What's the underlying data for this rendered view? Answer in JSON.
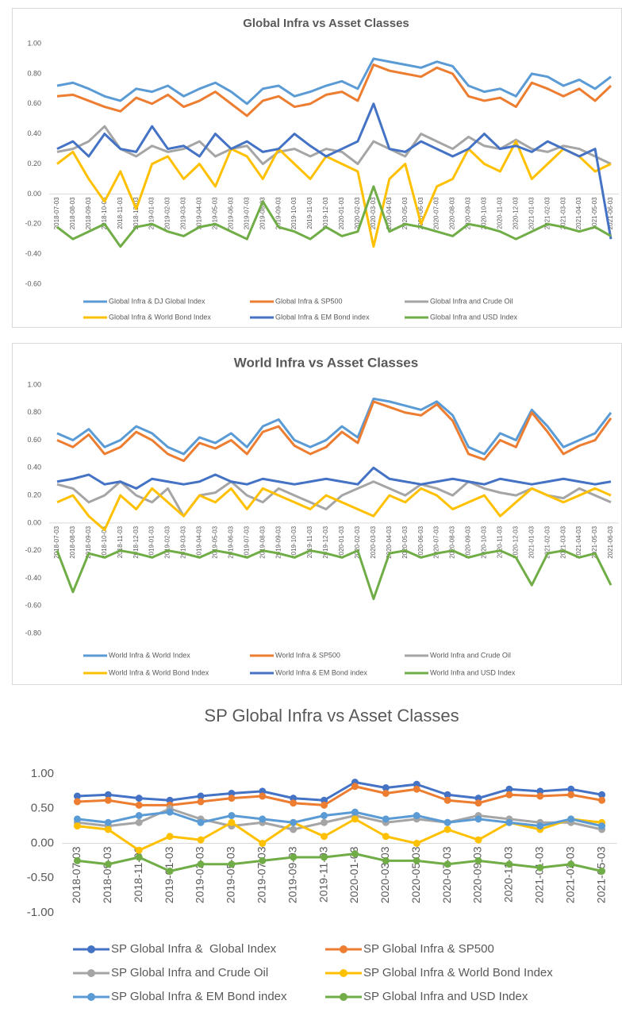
{
  "chart_data": [
    {
      "type": "line",
      "title": "Global Infra vs Asset Classes",
      "legend": "bottom",
      "grid": false,
      "categories": [
        "2018-07-03",
        "2018-08-03",
        "2018-09-03",
        "2018-10-03",
        "2018-11-03",
        "2018-12-03",
        "2019-01-03",
        "2019-02-03",
        "2019-03-03",
        "2019-04-03",
        "2019-05-03",
        "2019-06-03",
        "2019-07-03",
        "2019-08-03",
        "2019-09-03",
        "2019-10-03",
        "2019-11-03",
        "2019-12-03",
        "2020-01-03",
        "2020-02-03",
        "2020-03-03",
        "2020-04-03",
        "2020-05-03",
        "2020-06-03",
        "2020-07-03",
        "2020-08-03",
        "2020-09-03",
        "2020-10-03",
        "2020-11-03",
        "2020-12-03",
        "2021-01-03",
        "2021-02-03",
        "2021-03-03",
        "2021-04-03",
        "2021-05-03",
        "2021-06-03"
      ],
      "ylim": [
        -0.6,
        1.0
      ],
      "yticks": [
        {
          "value": 1.0,
          "label": "1.00"
        },
        {
          "value": 0.8,
          "label": "0.80"
        },
        {
          "value": 0.6,
          "label": "0.60"
        },
        {
          "value": 0.4,
          "label": "0.40"
        },
        {
          "value": 0.2,
          "label": "0.20"
        },
        {
          "value": 0,
          "label": "0.00"
        },
        {
          "value": -0.2,
          "label": "-0.20"
        },
        {
          "value": -0.4,
          "label": "-0.40"
        },
        {
          "value": -0.6,
          "label": "-0.60"
        }
      ],
      "series": [
        {
          "name": "Global Infra & DJ Global Index",
          "color": "#5b9bd5",
          "values": [
            0.72,
            0.74,
            0.7,
            0.65,
            0.62,
            0.7,
            0.68,
            0.72,
            0.65,
            0.7,
            0.74,
            0.68,
            0.6,
            0.7,
            0.72,
            0.65,
            0.68,
            0.72,
            0.75,
            0.7,
            0.9,
            0.88,
            0.86,
            0.84,
            0.88,
            0.85,
            0.72,
            0.68,
            0.7,
            0.65,
            0.8,
            0.78,
            0.72,
            0.76,
            0.7,
            0.78
          ]
        },
        {
          "name": "Global Infra & SP500",
          "color": "#ed7d31",
          "values": [
            0.65,
            0.66,
            0.62,
            0.58,
            0.55,
            0.64,
            0.6,
            0.66,
            0.58,
            0.62,
            0.68,
            0.6,
            0.52,
            0.62,
            0.65,
            0.58,
            0.6,
            0.66,
            0.68,
            0.62,
            0.86,
            0.82,
            0.8,
            0.78,
            0.84,
            0.8,
            0.65,
            0.62,
            0.64,
            0.58,
            0.74,
            0.7,
            0.65,
            0.7,
            0.62,
            0.72
          ]
        },
        {
          "name": "Global Infra and Crude Oil",
          "color": "#a5a5a5",
          "values": [
            0.28,
            0.3,
            0.35,
            0.45,
            0.3,
            0.25,
            0.32,
            0.28,
            0.3,
            0.35,
            0.25,
            0.3,
            0.32,
            0.2,
            0.28,
            0.3,
            0.25,
            0.3,
            0.28,
            0.2,
            0.35,
            0.3,
            0.25,
            0.4,
            0.35,
            0.3,
            0.38,
            0.32,
            0.3,
            0.36,
            0.3,
            0.28,
            0.32,
            0.3,
            0.25,
            0.2
          ]
        },
        {
          "name": "Global Infra & World Bond Index",
          "color": "#ffc000",
          "values": [
            0.2,
            0.28,
            0.1,
            -0.05,
            0.15,
            -0.1,
            0.2,
            0.25,
            0.1,
            0.2,
            0.05,
            0.3,
            0.25,
            0.1,
            0.3,
            0.2,
            0.1,
            0.25,
            0.2,
            0.15,
            -0.35,
            0.1,
            0.2,
            -0.2,
            0.05,
            0.1,
            0.3,
            0.2,
            0.15,
            0.35,
            0.1,
            0.2,
            0.3,
            0.25,
            0.15,
            0.2
          ]
        },
        {
          "name": "Global Infra & EM Bond index",
          "color": "#4472c4",
          "values": [
            0.3,
            0.35,
            0.25,
            0.4,
            0.3,
            0.28,
            0.45,
            0.3,
            0.32,
            0.25,
            0.4,
            0.3,
            0.35,
            0.28,
            0.3,
            0.4,
            0.32,
            0.25,
            0.3,
            0.35,
            0.6,
            0.3,
            0.28,
            0.35,
            0.3,
            0.25,
            0.3,
            0.4,
            0.3,
            0.32,
            0.28,
            0.35,
            0.3,
            0.25,
            0.3,
            -0.3
          ]
        },
        {
          "name": "Global Infra and USD Index",
          "color": "#70ad47",
          "values": [
            -0.22,
            -0.3,
            -0.25,
            -0.2,
            -0.35,
            -0.22,
            -0.2,
            -0.25,
            -0.28,
            -0.22,
            -0.2,
            -0.25,
            -0.3,
            -0.05,
            -0.22,
            -0.25,
            -0.3,
            -0.22,
            -0.28,
            -0.25,
            0.05,
            -0.25,
            -0.2,
            -0.22,
            -0.25,
            -0.28,
            -0.2,
            -0.22,
            -0.25,
            -0.3,
            -0.25,
            -0.2,
            -0.22,
            -0.25,
            -0.22,
            -0.28
          ]
        }
      ]
    },
    {
      "type": "line",
      "title": "World Infra vs Asset Classes",
      "legend": "bottom",
      "grid": false,
      "categories": [
        "2018-07-03",
        "2018-08-03",
        "2018-09-03",
        "2018-10-03",
        "2018-11-03",
        "2018-12-03",
        "2019-01-03",
        "2019-02-03",
        "2019-03-03",
        "2019-04-03",
        "2019-05-03",
        "2019-06-03",
        "2019-07-03",
        "2019-08-03",
        "2019-09-03",
        "2019-10-03",
        "2019-11-03",
        "2019-12-03",
        "2020-01-03",
        "2020-02-03",
        "2020-03-03",
        "2020-04-03",
        "2020-05-03",
        "2020-06-03",
        "2020-07-03",
        "2020-08-03",
        "2020-09-03",
        "2020-10-03",
        "2020-11-03",
        "2020-12-03",
        "2021-01-03",
        "2021-02-03",
        "2021-03-03",
        "2021-04-03",
        "2021-05-03",
        "2021-06-03"
      ],
      "ylim": [
        -0.8,
        1.0
      ],
      "yticks": [
        {
          "value": 1.0,
          "label": "1.00"
        },
        {
          "value": 0.8,
          "label": "0.80"
        },
        {
          "value": 0.6,
          "label": "0.60"
        },
        {
          "value": 0.4,
          "label": "0.40"
        },
        {
          "value": 0.2,
          "label": "0.20"
        },
        {
          "value": 0,
          "label": "0.00"
        },
        {
          "value": -0.2,
          "label": "-0.20"
        },
        {
          "value": -0.4,
          "label": "-0.40"
        },
        {
          "value": -0.6,
          "label": "-0.60"
        },
        {
          "value": -0.8,
          "label": "-0.80"
        }
      ],
      "series": [
        {
          "name": "World Infra & World Index",
          "color": "#5b9bd5",
          "values": [
            0.65,
            0.6,
            0.68,
            0.55,
            0.6,
            0.7,
            0.65,
            0.55,
            0.5,
            0.62,
            0.58,
            0.65,
            0.55,
            0.7,
            0.75,
            0.6,
            0.55,
            0.6,
            0.7,
            0.62,
            0.9,
            0.88,
            0.85,
            0.82,
            0.88,
            0.78,
            0.55,
            0.5,
            0.65,
            0.6,
            0.82,
            0.7,
            0.55,
            0.6,
            0.65,
            0.8
          ]
        },
        {
          "name": "World Infra & SP500",
          "color": "#ed7d31",
          "values": [
            0.6,
            0.55,
            0.64,
            0.5,
            0.55,
            0.66,
            0.6,
            0.5,
            0.45,
            0.58,
            0.54,
            0.6,
            0.5,
            0.66,
            0.7,
            0.56,
            0.5,
            0.55,
            0.66,
            0.58,
            0.88,
            0.84,
            0.8,
            0.78,
            0.86,
            0.74,
            0.5,
            0.46,
            0.6,
            0.55,
            0.8,
            0.66,
            0.5,
            0.56,
            0.6,
            0.76
          ]
        },
        {
          "name": "World Infra and Crude Oil",
          "color": "#a5a5a5",
          "values": [
            0.28,
            0.25,
            0.15,
            0.2,
            0.3,
            0.2,
            0.15,
            0.25,
            0.05,
            0.2,
            0.22,
            0.3,
            0.2,
            0.15,
            0.25,
            0.2,
            0.15,
            0.1,
            0.2,
            0.25,
            0.3,
            0.25,
            0.2,
            0.28,
            0.25,
            0.2,
            0.3,
            0.25,
            0.22,
            0.2,
            0.25,
            0.2,
            0.18,
            0.25,
            0.2,
            0.15
          ]
        },
        {
          "name": "World Infra & World Bond Index",
          "color": "#ffc000",
          "values": [
            0.15,
            0.2,
            0.05,
            -0.05,
            0.2,
            0.1,
            0.25,
            0.15,
            0.05,
            0.2,
            0.15,
            0.25,
            0.1,
            0.25,
            0.2,
            0.15,
            0.1,
            0.2,
            0.15,
            0.1,
            0.05,
            0.2,
            0.15,
            0.25,
            0.2,
            0.1,
            0.15,
            0.2,
            0.05,
            0.15,
            0.25,
            0.2,
            0.15,
            0.2,
            0.25,
            0.2
          ]
        },
        {
          "name": "World Infra & EM Bond index",
          "color": "#4472c4",
          "values": [
            0.3,
            0.32,
            0.35,
            0.28,
            0.3,
            0.25,
            0.32,
            0.3,
            0.28,
            0.3,
            0.35,
            0.3,
            0.28,
            0.32,
            0.3,
            0.28,
            0.3,
            0.32,
            0.3,
            0.28,
            0.4,
            0.32,
            0.3,
            0.28,
            0.3,
            0.32,
            0.3,
            0.28,
            0.32,
            0.3,
            0.28,
            0.3,
            0.32,
            0.3,
            0.28,
            0.3
          ]
        },
        {
          "name": "World Infra and USD Index",
          "color": "#70ad47",
          "values": [
            -0.2,
            -0.5,
            -0.22,
            -0.25,
            -0.2,
            -0.22,
            -0.25,
            -0.2,
            -0.22,
            -0.25,
            -0.2,
            -0.22,
            -0.25,
            -0.2,
            -0.22,
            -0.25,
            -0.2,
            -0.22,
            -0.25,
            -0.2,
            -0.55,
            -0.22,
            -0.2,
            -0.25,
            -0.22,
            -0.2,
            -0.25,
            -0.22,
            -0.2,
            -0.25,
            -0.45,
            -0.22,
            -0.2,
            -0.25,
            -0.22,
            -0.45
          ]
        }
      ]
    },
    {
      "type": "line",
      "title": "SP Global Infra vs Asset Classes",
      "legend": "bottom",
      "grid": false,
      "markers": true,
      "categories": [
        "2018-07-03",
        "2018-09-03",
        "2018-11-03",
        "2019-01-03",
        "2019-03-03",
        "2019-05-03",
        "2019-07-03",
        "2019-09-03",
        "2019-11-03",
        "2020-01-03",
        "2020-03-03",
        "2020-05-03",
        "2020-07-03",
        "2020-09-03",
        "2020-11-03",
        "2021-01-03",
        "2021-03-03",
        "2021-05-03"
      ],
      "ylim": [
        -1.0,
        1.0
      ],
      "yticks": [
        {
          "value": 1.0,
          "label": "1.00"
        },
        {
          "value": 0.5,
          "label": "0.50"
        },
        {
          "value": 0,
          "label": "0.00"
        },
        {
          "value": -0.5,
          "label": "-0.50"
        },
        {
          "value": -1.0,
          "label": "-1.00"
        }
      ],
      "series": [
        {
          "name": "SP Global Infra &  Global Index",
          "color": "#4472c4",
          "values": [
            0.68,
            0.7,
            0.65,
            0.62,
            0.68,
            0.72,
            0.75,
            0.65,
            0.62,
            0.88,
            0.8,
            0.85,
            0.7,
            0.65,
            0.78,
            0.75,
            0.78,
            0.7
          ]
        },
        {
          "name": "SP Global Infra & SP500",
          "color": "#ed7d31",
          "values": [
            0.6,
            0.62,
            0.55,
            0.55,
            0.6,
            0.65,
            0.68,
            0.58,
            0.55,
            0.82,
            0.72,
            0.78,
            0.62,
            0.58,
            0.7,
            0.68,
            0.7,
            0.62
          ]
        },
        {
          "name": "SP Global Infra and Crude Oil",
          "color": "#a5a5a5",
          "values": [
            0.3,
            0.25,
            0.3,
            0.5,
            0.35,
            0.25,
            0.3,
            0.2,
            0.3,
            0.4,
            0.3,
            0.35,
            0.3,
            0.4,
            0.35,
            0.3,
            0.3,
            0.2
          ]
        },
        {
          "name": "SP Global Infra & World Bond Index",
          "color": "#ffc000",
          "values": [
            0.25,
            0.2,
            -0.1,
            0.1,
            0.05,
            0.3,
            0.0,
            0.3,
            0.1,
            0.35,
            0.1,
            0.0,
            0.2,
            0.05,
            0.3,
            0.2,
            0.35,
            0.3
          ]
        },
        {
          "name": "SP Global Infra & EM Bond index",
          "color": "#5b9bd5",
          "values": [
            0.35,
            0.3,
            0.4,
            0.45,
            0.3,
            0.4,
            0.35,
            0.3,
            0.4,
            0.45,
            0.35,
            0.4,
            0.3,
            0.35,
            0.3,
            0.25,
            0.35,
            0.25
          ]
        },
        {
          "name": "SP Global Infra and USD Index",
          "color": "#70ad47",
          "values": [
            -0.25,
            -0.3,
            -0.2,
            -0.4,
            -0.3,
            -0.3,
            -0.25,
            -0.2,
            -0.2,
            -0.15,
            -0.25,
            -0.25,
            -0.3,
            -0.25,
            -0.3,
            -0.35,
            -0.3,
            -0.4
          ]
        }
      ]
    }
  ]
}
